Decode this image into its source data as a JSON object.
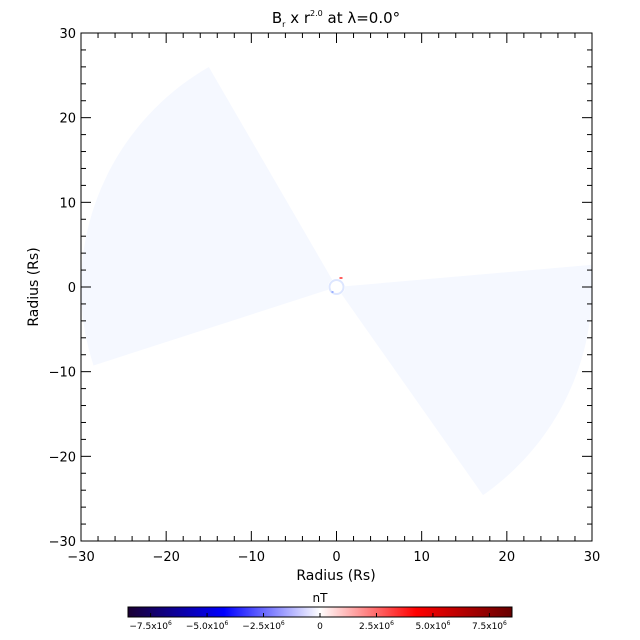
{
  "chart_data": {
    "type": "heatmap",
    "title": "B_r x r^2.0 at λ=0.0°",
    "title_parts": {
      "base": "B",
      "base_sub": "r",
      "mid": " x r",
      "mid_sup": "2.0",
      "tail": " at λ=0.0°"
    },
    "xlabel": "Radius (Rs)",
    "ylabel": "Radius (Rs)",
    "xlim": [
      -30,
      30
    ],
    "ylim": [
      -30,
      30
    ],
    "xticks": [
      -30,
      -20,
      -10,
      0,
      10,
      20,
      30
    ],
    "yticks": [
      -30,
      -20,
      -10,
      0,
      10,
      20,
      30
    ],
    "xtick_labels": [
      "−30",
      "−20",
      "−10",
      "0",
      "10",
      "20",
      "30"
    ],
    "ytick_labels": [
      "−30",
      "−20",
      "−10",
      "0",
      "10",
      "20",
      "30"
    ],
    "grid": false,
    "wedges": [
      {
        "name": "upper-left",
        "r_inner": 1,
        "r_outer": 30,
        "angle_from_deg": 120,
        "angle_to_deg": 198,
        "value": 0
      },
      {
        "name": "lower-right",
        "r_inner": 1,
        "r_outer": 30,
        "angle_from_deg": -55,
        "angle_to_deg": 5,
        "value": 0
      }
    ],
    "colorbar": {
      "label": "nT",
      "range": [
        -8500000.0,
        8500000.0
      ],
      "ticks": [
        -7500000.0,
        -5000000.0,
        -2500000.0,
        0,
        2500000.0,
        5000000.0,
        7500000.0
      ],
      "tick_labels": [
        {
          "mant": "−7.5x10",
          "exp": "6"
        },
        {
          "mant": "−5.0x10",
          "exp": "6"
        },
        {
          "mant": "−2.5x10",
          "exp": "6"
        },
        {
          "mant": "0",
          "exp": ""
        },
        {
          "mant": "2.5x10",
          "exp": "6"
        },
        {
          "mant": "5.0x10",
          "exp": "6"
        },
        {
          "mant": "7.5x10",
          "exp": "6"
        }
      ],
      "colors": [
        "#1a0033",
        "#0000ff",
        "#ffffff",
        "#ff0000",
        "#660000"
      ]
    }
  }
}
